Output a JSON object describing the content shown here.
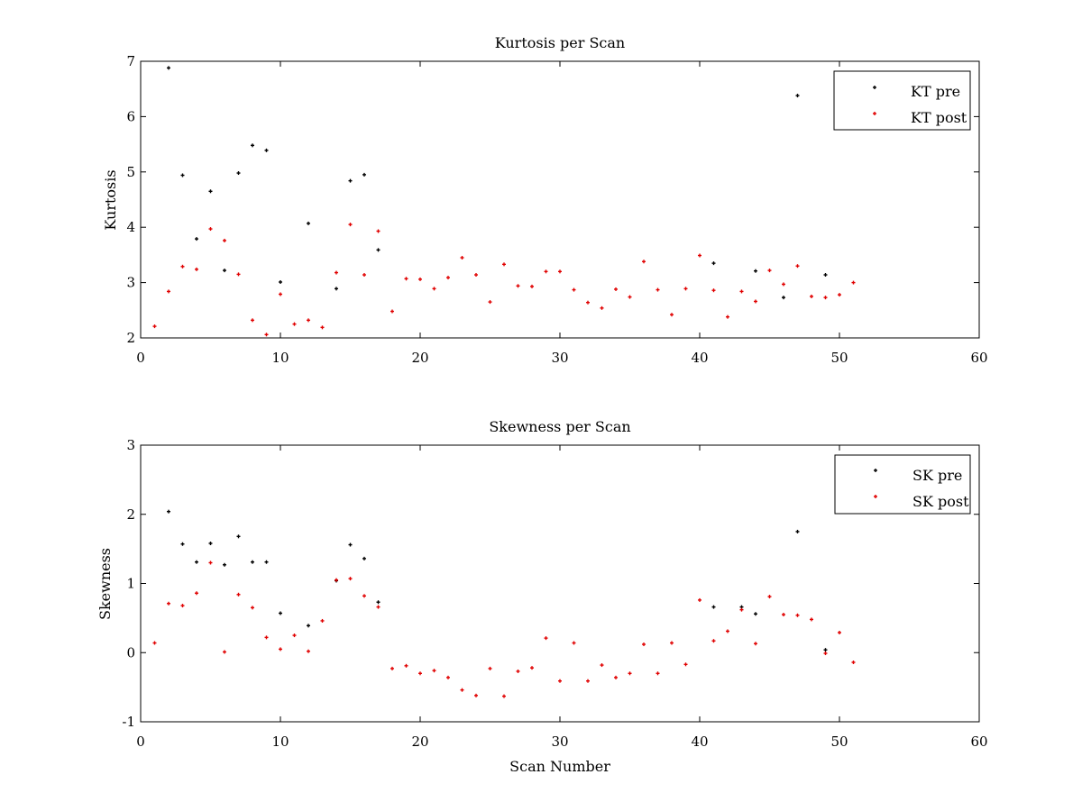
{
  "chart_data": [
    {
      "type": "scatter",
      "title": "Kurtosis per Scan",
      "xlabel": "",
      "ylabel": "Kurtosis",
      "xlim": [
        0,
        60
      ],
      "ylim": [
        2,
        7
      ],
      "xticks": [
        "0",
        "10",
        "20",
        "30",
        "40",
        "50",
        "60"
      ],
      "yticks": [
        "2",
        "3",
        "4",
        "5",
        "6",
        "7"
      ],
      "grid": false,
      "legend_position": "top-right",
      "series": [
        {
          "name": "KT pre",
          "color": "#000000",
          "marker": "plus",
          "x": [
            2,
            3,
            4,
            5,
            6,
            7,
            8,
            9,
            10,
            12,
            14,
            15,
            16,
            17,
            41,
            44,
            46,
            47,
            49
          ],
          "y": [
            6.88,
            4.94,
            3.79,
            4.65,
            3.22,
            4.98,
            5.48,
            5.39,
            3.01,
            4.07,
            2.89,
            4.84,
            4.95,
            3.59,
            3.35,
            3.21,
            2.73,
            6.38,
            3.14
          ]
        },
        {
          "name": "KT post",
          "color": "#e00000",
          "marker": "plus",
          "x": [
            1,
            2,
            3,
            4,
            5,
            6,
            7,
            8,
            9,
            10,
            11,
            12,
            13,
            14,
            15,
            16,
            17,
            18,
            19,
            20,
            21,
            22,
            23,
            24,
            25,
            26,
            27,
            28,
            29,
            30,
            31,
            32,
            33,
            34,
            35,
            36,
            37,
            38,
            39,
            40,
            41,
            42,
            43,
            44,
            45,
            46,
            47,
            48,
            49,
            50,
            51
          ],
          "y": [
            2.21,
            2.84,
            3.29,
            3.24,
            3.97,
            3.76,
            3.15,
            2.32,
            2.06,
            2.79,
            2.25,
            2.32,
            2.19,
            3.18,
            4.05,
            3.14,
            3.93,
            2.48,
            3.07,
            3.06,
            2.89,
            3.09,
            3.45,
            3.14,
            2.65,
            3.33,
            2.94,
            2.93,
            3.2,
            3.2,
            2.87,
            2.64,
            2.54,
            2.88,
            2.74,
            3.38,
            2.87,
            2.42,
            2.89,
            3.49,
            2.86,
            2.38,
            2.84,
            2.66,
            3.22,
            2.97,
            3.3,
            2.75,
            2.73,
            2.78,
            3.0
          ]
        }
      ]
    },
    {
      "type": "scatter",
      "title": "Skewness per Scan",
      "xlabel": "Scan Number",
      "ylabel": "Skewness",
      "xlim": [
        0,
        60
      ],
      "ylim": [
        -1,
        3
      ],
      "xticks": [
        "0",
        "10",
        "20",
        "30",
        "40",
        "50",
        "60"
      ],
      "yticks": [
        "-1",
        "0",
        "1",
        "2",
        "3"
      ],
      "grid": false,
      "legend_position": "top-right",
      "series": [
        {
          "name": "SK pre",
          "color": "#000000",
          "marker": "plus",
          "x": [
            2,
            3,
            4,
            5,
            6,
            7,
            8,
            9,
            10,
            12,
            14,
            15,
            16,
            17,
            41,
            43,
            44,
            47,
            49
          ],
          "y": [
            2.04,
            1.57,
            1.31,
            1.58,
            1.27,
            1.68,
            1.31,
            1.31,
            0.57,
            0.39,
            1.04,
            1.56,
            1.36,
            0.73,
            0.66,
            0.66,
            0.56,
            1.75,
            0.04
          ]
        },
        {
          "name": "SK post",
          "color": "#e00000",
          "marker": "plus",
          "x": [
            1,
            2,
            3,
            4,
            5,
            6,
            7,
            8,
            9,
            10,
            11,
            12,
            13,
            14,
            15,
            16,
            17,
            18,
            19,
            20,
            21,
            22,
            23,
            24,
            25,
            26,
            27,
            28,
            29,
            30,
            31,
            32,
            33,
            34,
            35,
            36,
            37,
            38,
            39,
            40,
            41,
            42,
            43,
            44,
            45,
            46,
            47,
            48,
            49,
            50,
            51
          ],
          "y": [
            0.14,
            0.71,
            0.68,
            0.86,
            1.3,
            0.01,
            0.84,
            0.65,
            0.22,
            0.05,
            0.25,
            0.02,
            0.46,
            1.05,
            1.07,
            0.82,
            0.66,
            -0.23,
            -0.19,
            -0.3,
            -0.26,
            -0.36,
            -0.54,
            -0.62,
            -0.23,
            -0.63,
            -0.27,
            -0.22,
            0.21,
            -0.41,
            0.14,
            -0.41,
            -0.18,
            -0.36,
            -0.3,
            0.12,
            -0.3,
            0.14,
            -0.17,
            0.76,
            0.17,
            0.31,
            0.62,
            0.13,
            0.81,
            0.55,
            0.54,
            0.48,
            -0.01,
            0.29,
            -0.14
          ]
        }
      ]
    }
  ]
}
